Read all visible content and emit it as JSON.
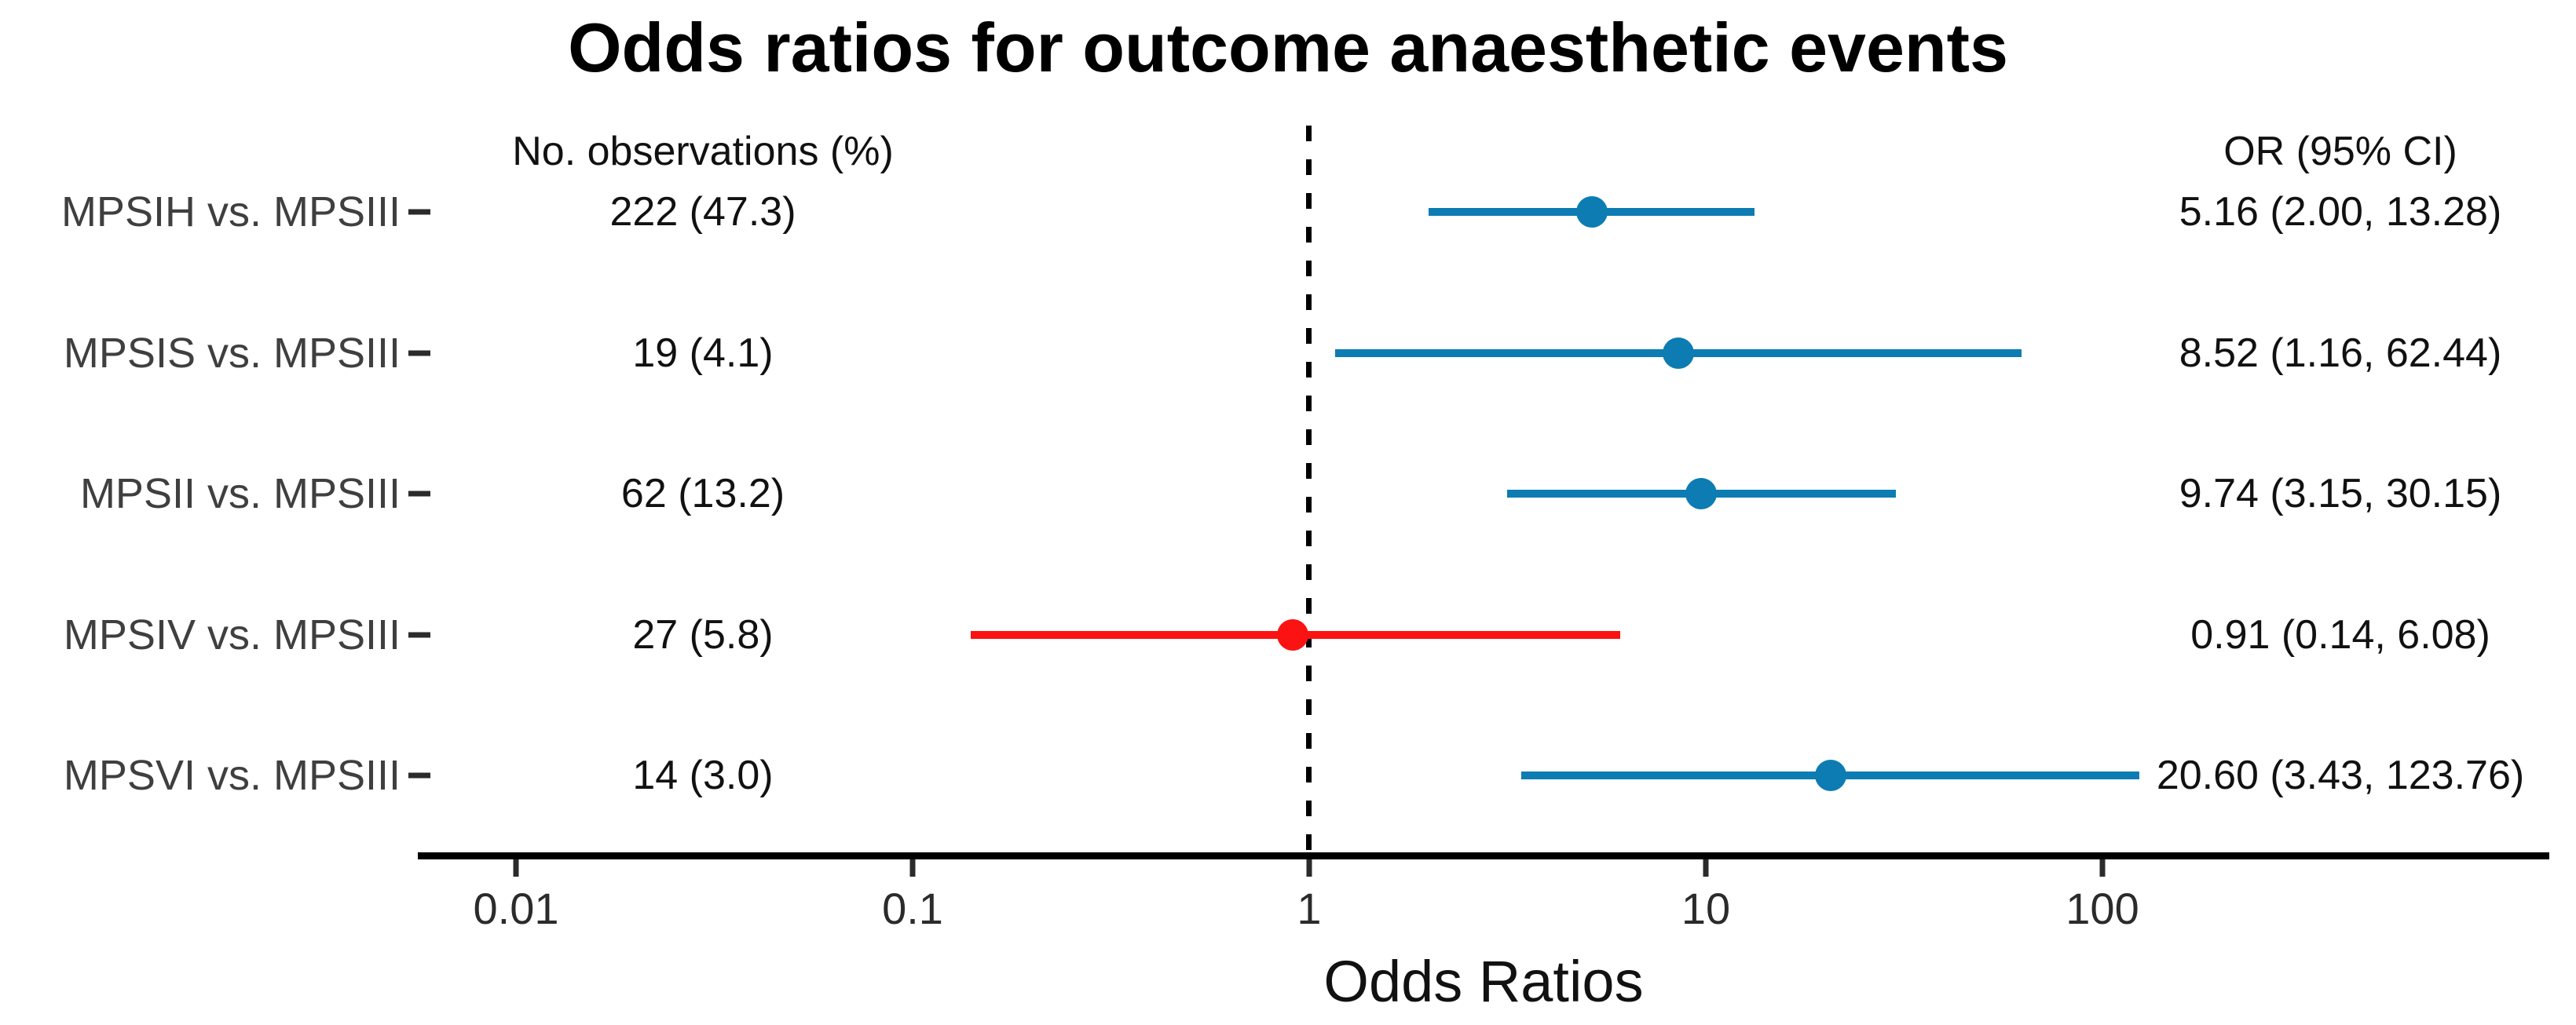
{
  "chart_data": {
    "type": "scatter",
    "subtype": "forest-plot",
    "title": "Odds ratios for outcome anaesthetic events",
    "xlabel": "Odds Ratios",
    "x_scale": "log10",
    "x_ticks": [
      "0.01",
      "0.1",
      "1",
      "10",
      "100"
    ],
    "x_axis_range_approx": [
      0.0055,
      1300
    ],
    "reference_line_x": 1,
    "grid": "off",
    "legend": "none",
    "columns": {
      "observations": "No. observations (%)",
      "or_ci": "OR (95% CI)"
    },
    "rows": [
      {
        "label": "MPSIH vs. MPSIII",
        "observations": "222 (47.3)",
        "or": 5.16,
        "ci_low": 2.0,
        "ci_high": 13.28,
        "or_ci_text": "5.16 (2.00, 13.28)",
        "color": "#0c7cb2"
      },
      {
        "label": "MPSIS vs. MPSIII",
        "observations": "19 (4.1)",
        "or": 8.52,
        "ci_low": 1.16,
        "ci_high": 62.44,
        "or_ci_text": "8.52 (1.16, 62.44)",
        "color": "#0c7cb2"
      },
      {
        "label": "MPSII vs. MPSIII",
        "observations": "62 (13.2)",
        "or": 9.74,
        "ci_low": 3.15,
        "ci_high": 30.15,
        "or_ci_text": "9.74 (3.15, 30.15)",
        "color": "#0c7cb2"
      },
      {
        "label": "MPSIV vs. MPSIII",
        "observations": "27 (5.8)",
        "or": 0.91,
        "ci_low": 0.14,
        "ci_high": 6.08,
        "or_ci_text": "0.91 (0.14, 6.08)",
        "color": "#fb1212"
      },
      {
        "label": "MPSVI vs. MPSIII",
        "observations": "14 (3.0)",
        "or": 20.6,
        "ci_low": 3.43,
        "ci_high": 123.76,
        "or_ci_text": "20.60 (3.43, 123.76)",
        "color": "#0c7cb2"
      }
    ],
    "colors": {
      "series_blue": "#0c7cb2",
      "series_red": "#fb1212",
      "axis": "#000000",
      "row_label_text": "#3f3f3f"
    }
  }
}
